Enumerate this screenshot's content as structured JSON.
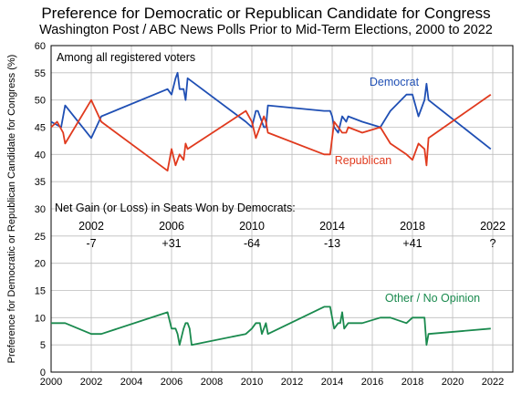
{
  "chart_data": {
    "type": "line",
    "title": "Preference for Democratic or Republican Candidate for Congress",
    "subtitle": "Washington Post / ABC News Polls Prior to Mid-Term Elections, 2000 to 2022",
    "xlabel": "",
    "ylabel": "Preference for Democratic or Republican Candidate for Congress (%)",
    "xlim": [
      2000,
      2023
    ],
    "ylim": [
      0,
      60
    ],
    "x_ticks": [
      "2000",
      "2002",
      "2004",
      "2006",
      "2008",
      "2010",
      "2012",
      "2014",
      "2016",
      "2018",
      "2020",
      "2022"
    ],
    "y_ticks": [
      "0",
      "5",
      "10",
      "15",
      "20",
      "25",
      "30",
      "35",
      "40",
      "45",
      "50",
      "55",
      "60"
    ],
    "grid": true,
    "annotation": "Among all registered voters",
    "seats_heading": "Net Gain (or Loss) in Seats Won by Democrats:",
    "seats": [
      {
        "year": "2002",
        "change": "-7"
      },
      {
        "year": "2006",
        "change": "+31"
      },
      {
        "year": "2010",
        "change": "-64"
      },
      {
        "year": "2014",
        "change": "-13"
      },
      {
        "year": "2018",
        "change": "+41"
      },
      {
        "year": "2022",
        "change": "?"
      }
    ],
    "series": [
      {
        "name": "Democrat",
        "color": "#1f4fb4",
        "points": [
          [
            2000.0,
            46
          ],
          [
            2000.5,
            45
          ],
          [
            2000.7,
            49
          ],
          [
            2002.0,
            43
          ],
          [
            2002.5,
            47
          ],
          [
            2005.8,
            52
          ],
          [
            2006.0,
            51
          ],
          [
            2006.2,
            54
          ],
          [
            2006.3,
            55
          ],
          [
            2006.4,
            52
          ],
          [
            2006.6,
            52
          ],
          [
            2006.7,
            50
          ],
          [
            2006.8,
            54
          ],
          [
            2009.7,
            46
          ],
          [
            2010.0,
            45
          ],
          [
            2010.2,
            48
          ],
          [
            2010.3,
            48
          ],
          [
            2010.5,
            46
          ],
          [
            2010.6,
            45
          ],
          [
            2010.7,
            45
          ],
          [
            2010.8,
            49
          ],
          [
            2013.6,
            48
          ],
          [
            2013.9,
            48
          ],
          [
            2014.0,
            47
          ],
          [
            2014.1,
            45
          ],
          [
            2014.3,
            44
          ],
          [
            2014.5,
            47
          ],
          [
            2014.7,
            46
          ],
          [
            2014.8,
            47
          ],
          [
            2015.5,
            46
          ],
          [
            2016.4,
            45
          ],
          [
            2016.9,
            48
          ],
          [
            2017.7,
            51
          ],
          [
            2018.0,
            51
          ],
          [
            2018.3,
            47
          ],
          [
            2018.6,
            50
          ],
          [
            2018.7,
            53
          ],
          [
            2018.8,
            50
          ],
          [
            2021.9,
            41
          ]
        ]
      },
      {
        "name": "Republican",
        "color": "#e03a1e",
        "points": [
          [
            2000.0,
            45
          ],
          [
            2000.3,
            46
          ],
          [
            2000.6,
            44
          ],
          [
            2000.7,
            42
          ],
          [
            2002.0,
            50
          ],
          [
            2002.5,
            46
          ],
          [
            2005.8,
            37
          ],
          [
            2006.0,
            41
          ],
          [
            2006.2,
            38
          ],
          [
            2006.3,
            39
          ],
          [
            2006.4,
            40
          ],
          [
            2006.6,
            39
          ],
          [
            2006.7,
            42
          ],
          [
            2006.8,
            41
          ],
          [
            2009.7,
            48
          ],
          [
            2010.0,
            46
          ],
          [
            2010.2,
            43
          ],
          [
            2010.3,
            44
          ],
          [
            2010.5,
            46
          ],
          [
            2010.6,
            47
          ],
          [
            2010.7,
            46
          ],
          [
            2010.8,
            44
          ],
          [
            2013.6,
            40
          ],
          [
            2013.9,
            40
          ],
          [
            2014.0,
            43
          ],
          [
            2014.1,
            46
          ],
          [
            2014.3,
            45
          ],
          [
            2014.5,
            44
          ],
          [
            2014.7,
            44
          ],
          [
            2014.8,
            45
          ],
          [
            2015.5,
            44
          ],
          [
            2016.4,
            45
          ],
          [
            2016.9,
            42
          ],
          [
            2017.7,
            40
          ],
          [
            2018.0,
            39
          ],
          [
            2018.3,
            42
          ],
          [
            2018.6,
            41
          ],
          [
            2018.7,
            38
          ],
          [
            2018.8,
            43
          ],
          [
            2021.9,
            51
          ]
        ]
      },
      {
        "name": "Other / No Opinion",
        "color": "#1a8a4e",
        "points": [
          [
            2000.0,
            9
          ],
          [
            2000.7,
            9
          ],
          [
            2002.0,
            7
          ],
          [
            2002.5,
            7
          ],
          [
            2005.8,
            11
          ],
          [
            2006.0,
            8
          ],
          [
            2006.2,
            8
          ],
          [
            2006.3,
            7
          ],
          [
            2006.4,
            5
          ],
          [
            2006.6,
            8
          ],
          [
            2006.7,
            9
          ],
          [
            2006.8,
            9
          ],
          [
            2006.9,
            8
          ],
          [
            2007.0,
            5
          ],
          [
            2009.7,
            7
          ],
          [
            2010.0,
            8
          ],
          [
            2010.2,
            9
          ],
          [
            2010.4,
            9
          ],
          [
            2010.5,
            7
          ],
          [
            2010.7,
            9
          ],
          [
            2010.8,
            7
          ],
          [
            2013.6,
            12
          ],
          [
            2013.9,
            12
          ],
          [
            2014.0,
            10
          ],
          [
            2014.1,
            8
          ],
          [
            2014.3,
            9
          ],
          [
            2014.4,
            9
          ],
          [
            2014.5,
            11
          ],
          [
            2014.6,
            8
          ],
          [
            2014.8,
            9
          ],
          [
            2015.5,
            9
          ],
          [
            2016.4,
            10
          ],
          [
            2016.9,
            10
          ],
          [
            2017.7,
            9
          ],
          [
            2018.0,
            10
          ],
          [
            2018.3,
            10
          ],
          [
            2018.6,
            10
          ],
          [
            2018.7,
            5
          ],
          [
            2018.8,
            7
          ],
          [
            2021.9,
            8
          ]
        ]
      }
    ]
  }
}
